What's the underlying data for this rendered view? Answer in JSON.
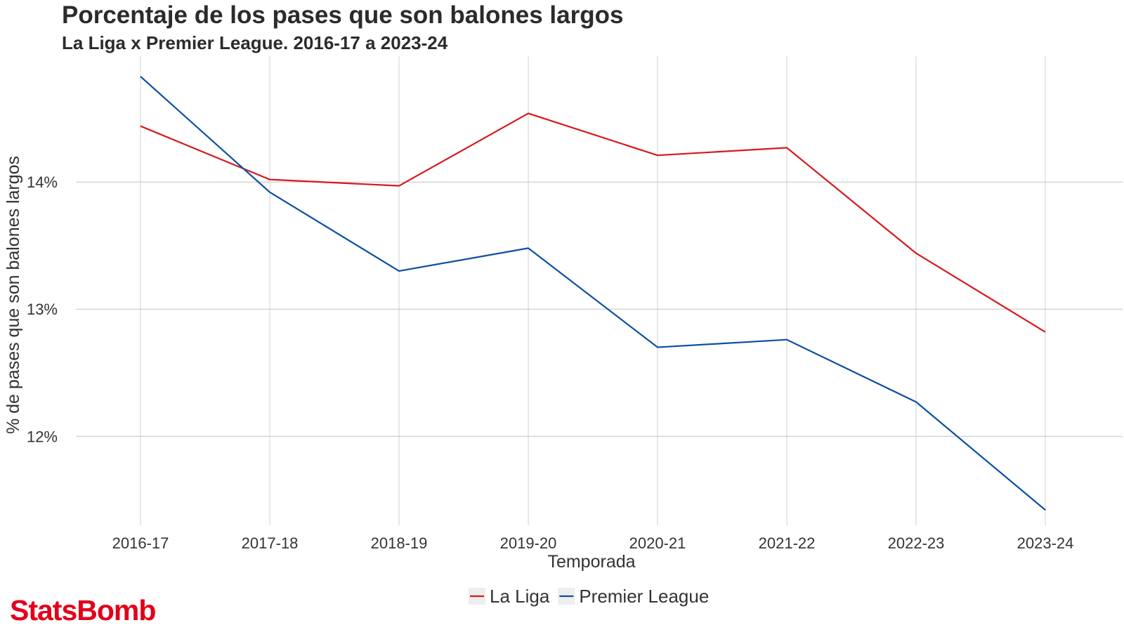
{
  "chart_data": {
    "type": "line",
    "title": "Porcentaje de los pases que son balones largos",
    "subtitle": "La Liga x Premier League. 2016-17 a 2023-24",
    "xlabel": "Temporada",
    "ylabel": "% de pases que son balones largos",
    "categories": [
      "2016-17",
      "2017-18",
      "2018-19",
      "2019-20",
      "2020-21",
      "2021-22",
      "2022-23",
      "2023-24"
    ],
    "y_ticks": [
      12,
      13,
      14
    ],
    "y_tick_labels": [
      "12%",
      "13%",
      "14%"
    ],
    "ylim": [
      11.3,
      14.99
    ],
    "grid": true,
    "legend_position": "bottom",
    "series": [
      {
        "name": "La Liga",
        "color": "#d7191c",
        "values": [
          14.44,
          14.02,
          13.97,
          14.54,
          14.21,
          14.27,
          13.44,
          12.82
        ]
      },
      {
        "name": "Premier League",
        "color": "#0d4fa0",
        "values": [
          14.83,
          13.92,
          13.3,
          13.48,
          12.7,
          12.76,
          12.27,
          11.42
        ]
      }
    ]
  },
  "brand": {
    "logo_text": "StatsBomb",
    "color": "#e2001a"
  }
}
